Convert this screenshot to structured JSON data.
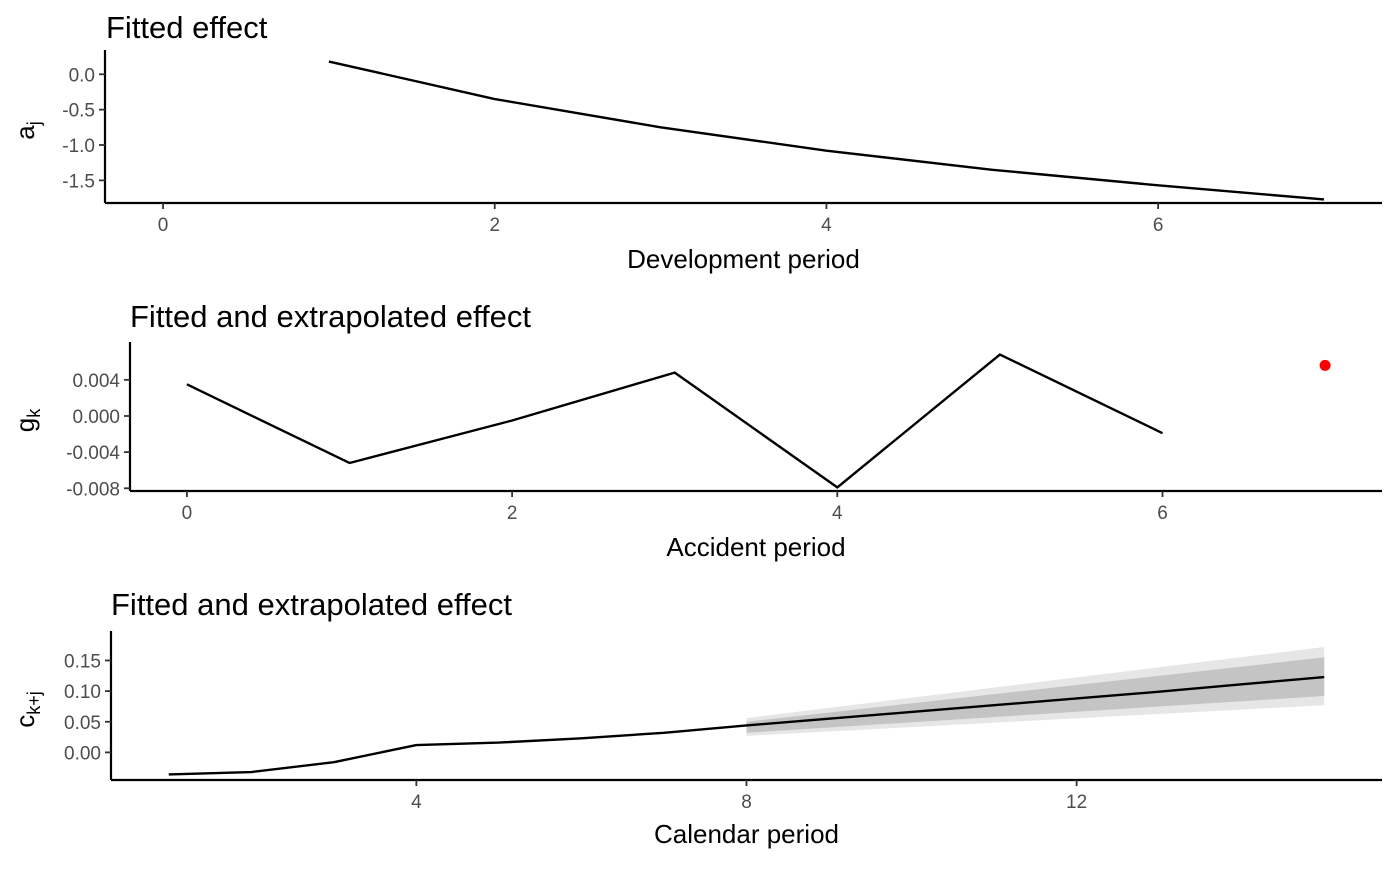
{
  "chart_data": [
    {
      "type": "line",
      "title": "Fitted effect",
      "xlabel": "Development period",
      "ylabel": {
        "main": "a",
        "sub": "j"
      },
      "xlim": [
        -0.35,
        7.35
      ],
      "ylim": [
        -1.82,
        0.23
      ],
      "xticks": [
        0,
        2,
        4,
        6
      ],
      "xtick_labels": [
        "0",
        "2",
        "4",
        "6"
      ],
      "yticks": [
        0.0,
        -0.5,
        -1.0,
        -1.5
      ],
      "ytick_labels": [
        "0.0",
        "-0.5",
        "-1.0",
        "-1.5"
      ],
      "grid": false,
      "series": [
        {
          "x": [
            1,
            2,
            3,
            4,
            5,
            6,
            7
          ],
          "y": [
            0.18,
            -0.35,
            -0.75,
            -1.08,
            -1.35,
            -1.57,
            -1.77
          ],
          "color": "#000000"
        }
      ]
    },
    {
      "type": "line",
      "title": "Fitted and extrapolated effect",
      "xlabel": "Accident period",
      "ylabel": {
        "main": "g",
        "sub": "k"
      },
      "xlim": [
        -0.35,
        7.35
      ],
      "ylim": [
        -0.0083,
        0.0073
      ],
      "xticks": [
        0,
        2,
        4,
        6
      ],
      "xtick_labels": [
        "0",
        "2",
        "4",
        "6"
      ],
      "yticks": [
        0.004,
        0.0,
        -0.004,
        -0.008
      ],
      "ytick_labels": [
        "0.004",
        "0.000",
        "-0.004",
        "-0.008"
      ],
      "grid": false,
      "series": [
        {
          "x": [
            0,
            1,
            2,
            3,
            4,
            5,
            6
          ],
          "y": [
            0.0035,
            -0.0052,
            -0.0005,
            0.0048,
            -0.0079,
            0.0068,
            -0.0019
          ],
          "color": "#000000"
        }
      ],
      "points": [
        {
          "x": 7,
          "y": 0.0056,
          "color": "#ff0000"
        }
      ]
    },
    {
      "type": "area",
      "title": "Fitted and extrapolated effect",
      "xlabel": "Calendar period",
      "ylabel": {
        "main": "c",
        "sub": "k+j"
      },
      "xlim": [
        0.3,
        15.7
      ],
      "ylim": [
        -0.045,
        0.185
      ],
      "xticks": [
        4,
        8,
        12
      ],
      "xtick_labels": [
        "4",
        "8",
        "12"
      ],
      "yticks": [
        0.15,
        0.1,
        0.05,
        0.0
      ],
      "ytick_labels": [
        "0.15",
        "0.10",
        "0.05",
        "0.00"
      ],
      "grid": false,
      "series": [
        {
          "x": [
            1,
            2,
            3,
            4,
            5,
            6,
            7,
            8,
            9,
            10,
            11,
            12,
            13,
            14,
            15
          ],
          "y": [
            -0.036,
            -0.032,
            -0.016,
            0.012,
            0.016,
            0.023,
            0.032,
            0.044,
            0.055,
            0.066,
            0.077,
            0.088,
            0.099,
            0.111,
            0.123
          ],
          "color": "#000000"
        }
      ],
      "bands": [
        {
          "x": [
            8,
            15
          ],
          "lower": [
            0.027,
            0.077
          ],
          "upper": [
            0.056,
            0.172
          ],
          "color": "#e6e6e6"
        },
        {
          "x": [
            8,
            15
          ],
          "lower": [
            0.032,
            0.092
          ],
          "upper": [
            0.05,
            0.155
          ],
          "color": "#c4c4c4"
        }
      ]
    }
  ]
}
